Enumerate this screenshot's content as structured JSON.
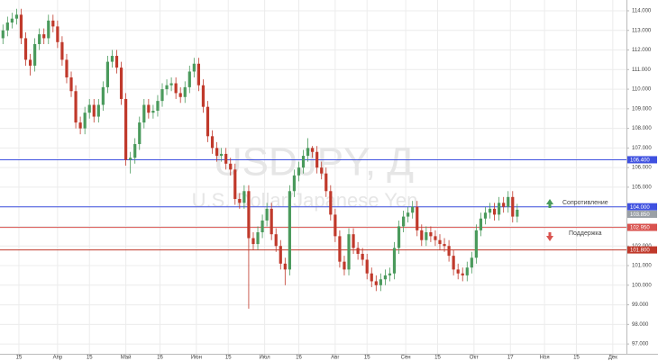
{
  "chart_data": {
    "type": "candlestick",
    "watermark_title": "USDJPY, Д",
    "watermark_subtitle": "U.S. Dollar/Japanese Yen",
    "annotations": {
      "resistance": "Сопротивление",
      "support": "Поддержка"
    },
    "up_color": "#4a9a5c",
    "down_color": "#c0392b",
    "grid": true,
    "xlim": [
      66.7,
      342
    ],
    "ylim": [
      96.5,
      114.55
    ],
    "xticks": [
      {
        "value": 75,
        "label": "15"
      },
      {
        "value": 92,
        "label": "Апр"
      },
      {
        "value": 106,
        "label": "15"
      },
      {
        "value": 122,
        "label": "Май"
      },
      {
        "value": 137,
        "label": "16"
      },
      {
        "value": 153,
        "label": "Июн"
      },
      {
        "value": 167,
        "label": "15"
      },
      {
        "value": 183,
        "label": "Июл"
      },
      {
        "value": 198,
        "label": "16"
      },
      {
        "value": 214,
        "label": "Авг"
      },
      {
        "value": 228,
        "label": "15"
      },
      {
        "value": 245,
        "label": "Сен"
      },
      {
        "value": 259,
        "label": "15"
      },
      {
        "value": 275,
        "label": "Окт"
      },
      {
        "value": 291,
        "label": "17"
      },
      {
        "value": 306,
        "label": "Ноя"
      },
      {
        "value": 320,
        "label": "15"
      },
      {
        "value": 336,
        "label": "Дек"
      }
    ],
    "yticks": [
      {
        "value": 97,
        "label": "97.000"
      },
      {
        "value": 98,
        "label": "98.000"
      },
      {
        "value": 99,
        "label": "99.000"
      },
      {
        "value": 100,
        "label": "100.000"
      },
      {
        "value": 101,
        "label": "101.000"
      },
      {
        "value": 102,
        "label": "102.000"
      },
      {
        "value": 103,
        "label": "103.000"
      },
      {
        "value": 104,
        "label": "104.000"
      },
      {
        "value": 105,
        "label": "105.000"
      },
      {
        "value": 106,
        "label": "106.000"
      },
      {
        "value": 107,
        "label": "107.000"
      },
      {
        "value": 108,
        "label": "108.000"
      },
      {
        "value": 109,
        "label": "109.000"
      },
      {
        "value": 110,
        "label": "110.000"
      },
      {
        "value": 111,
        "label": "111.000"
      },
      {
        "value": 112,
        "label": "112.000"
      },
      {
        "value": 113,
        "label": "113.000"
      },
      {
        "value": 114,
        "label": "114.000"
      }
    ],
    "levels": [
      {
        "value": 106.4,
        "label": "106.400",
        "color": "#3f51e0"
      },
      {
        "value": 104.0,
        "label": "104.000",
        "color": "#3f51e0"
      },
      {
        "value": 102.95,
        "label": "102.950",
        "color": "#d9534f"
      },
      {
        "value": 101.8,
        "label": "101.800",
        "color": "#c0392b"
      }
    ],
    "last_price": {
      "value": 103.85,
      "label": "103.850",
      "color": "#9aa0a6"
    },
    "x": [
      68,
      70,
      72,
      74,
      76,
      78,
      80,
      82,
      84,
      86,
      88,
      90,
      92,
      94,
      96,
      98,
      100,
      102,
      104,
      106,
      108,
      110,
      112,
      114,
      116,
      118,
      120,
      122,
      124,
      126,
      128,
      130,
      132,
      134,
      136,
      138,
      140,
      142,
      144,
      146,
      148,
      150,
      152,
      154,
      156,
      158,
      160,
      162,
      164,
      166,
      168,
      170,
      172,
      174,
      176,
      178,
      180,
      182,
      184,
      186,
      188,
      190,
      192,
      194,
      196,
      198,
      200,
      202,
      204,
      206,
      208,
      210,
      212,
      214,
      216,
      218,
      220,
      222,
      224,
      226,
      228,
      230,
      232,
      234,
      236,
      238,
      240,
      242,
      244,
      246,
      248,
      250,
      252,
      254,
      256,
      258,
      260,
      262,
      264,
      266,
      268,
      270,
      272,
      274,
      276,
      278,
      280,
      282,
      284,
      286,
      288,
      290,
      292,
      294
    ],
    "open": [
      112.6,
      113.0,
      113.4,
      113.6,
      113.8,
      112.6,
      111.5,
      111.2,
      112.3,
      112.8,
      112.6,
      113.5,
      113.2,
      112.4,
      111.5,
      110.6,
      109.9,
      108.3,
      108.0,
      108.8,
      109.2,
      108.6,
      109.2,
      110.1,
      111.4,
      111.7,
      111.1,
      109.5,
      106.4,
      106.5,
      107.2,
      108.3,
      109.2,
      108.8,
      108.9,
      109.4,
      110.0,
      110.2,
      110.3,
      109.8,
      109.6,
      110.1,
      110.9,
      111.3,
      110.2,
      109.1,
      107.6,
      107.0,
      106.6,
      106.7,
      106.2,
      105.9,
      104.4,
      104.2,
      104.8,
      102.4,
      102.1,
      102.7,
      103.3,
      103.9,
      102.6,
      102.0,
      101.1,
      100.8,
      104.8,
      105.6,
      106.0,
      106.6,
      107.0,
      106.8,
      106.0,
      105.7,
      104.8,
      103.6,
      102.5,
      101.2,
      100.8,
      102.6,
      101.9,
      101.6,
      101.3,
      100.6,
      100.2,
      100.0,
      100.3,
      100.5,
      100.6,
      101.9,
      103.0,
      103.5,
      103.7,
      104.0,
      102.8,
      102.3,
      102.7,
      102.5,
      102.3,
      102.1,
      102.0,
      101.5,
      100.8,
      100.6,
      100.5,
      100.9,
      101.4,
      102.8,
      103.4,
      103.7,
      103.9,
      103.6,
      104.2,
      104.0,
      104.5,
      103.5
    ],
    "high": [
      113.3,
      113.7,
      113.9,
      114.1,
      114.1,
      112.9,
      111.8,
      112.6,
      113.1,
      113.1,
      113.8,
      113.8,
      113.5,
      112.7,
      111.8,
      110.9,
      110.2,
      108.6,
      109.1,
      109.5,
      109.5,
      109.5,
      110.4,
      111.7,
      112.0,
      112.0,
      111.4,
      109.8,
      106.8,
      107.5,
      108.6,
      109.5,
      109.5,
      109.2,
      109.7,
      110.3,
      110.5,
      110.6,
      110.6,
      110.1,
      110.4,
      111.2,
      111.6,
      111.6,
      110.5,
      109.4,
      107.9,
      107.3,
      107.0,
      107.0,
      106.5,
      106.2,
      104.7,
      105.1,
      105.1,
      102.7,
      103.0,
      103.6,
      104.2,
      104.2,
      102.9,
      102.3,
      101.4,
      105.1,
      105.9,
      106.3,
      106.9,
      107.5,
      107.1,
      107.1,
      106.3,
      106.0,
      105.1,
      103.9,
      102.8,
      101.5,
      102.9,
      102.9,
      102.2,
      101.9,
      101.6,
      100.9,
      100.5,
      100.6,
      100.8,
      100.9,
      102.2,
      103.3,
      103.8,
      104.0,
      104.3,
      104.3,
      103.1,
      103.0,
      103.0,
      102.8,
      102.6,
      102.4,
      102.3,
      101.8,
      101.1,
      100.9,
      101.2,
      101.7,
      103.1,
      103.7,
      104.0,
      104.2,
      104.2,
      104.5,
      104.5,
      104.8,
      104.8,
      104.15
    ],
    "low": [
      112.3,
      112.7,
      113.1,
      113.3,
      112.3,
      111.2,
      110.7,
      110.9,
      112.0,
      112.3,
      112.3,
      112.9,
      112.1,
      111.2,
      110.3,
      109.6,
      108.0,
      107.7,
      107.7,
      108.5,
      108.3,
      108.3,
      108.9,
      109.8,
      111.1,
      110.8,
      109.2,
      106.1,
      105.7,
      106.2,
      106.9,
      108.0,
      108.5,
      108.5,
      108.6,
      109.1,
      109.7,
      109.9,
      109.5,
      109.3,
      109.3,
      109.8,
      110.6,
      109.9,
      108.8,
      107.3,
      106.7,
      106.3,
      106.3,
      105.9,
      105.6,
      104.1,
      103.9,
      103.9,
      98.8,
      101.8,
      101.8,
      102.4,
      103.0,
      102.3,
      101.7,
      100.8,
      100.0,
      100.5,
      104.5,
      105.3,
      105.7,
      106.3,
      106.5,
      105.7,
      105.4,
      104.5,
      103.3,
      102.2,
      100.9,
      100.5,
      100.5,
      101.6,
      101.3,
      101.0,
      100.3,
      99.9,
      99.7,
      99.7,
      100.0,
      100.2,
      100.3,
      101.6,
      102.7,
      103.2,
      103.4,
      102.5,
      102.0,
      102.0,
      102.2,
      102.0,
      101.8,
      101.7,
      101.2,
      100.5,
      100.3,
      100.2,
      100.2,
      100.6,
      101.1,
      102.5,
      103.1,
      103.4,
      103.3,
      103.3,
      103.7,
      103.7,
      103.2,
      103.2
    ],
    "close": [
      113.0,
      113.4,
      113.6,
      113.8,
      112.6,
      111.5,
      111.2,
      112.3,
      112.8,
      112.6,
      113.5,
      113.2,
      112.4,
      111.5,
      110.6,
      109.9,
      108.3,
      108.0,
      108.8,
      109.2,
      108.6,
      109.2,
      110.1,
      111.4,
      111.7,
      111.1,
      109.5,
      106.4,
      106.5,
      107.2,
      108.3,
      109.2,
      108.8,
      108.9,
      109.4,
      110.0,
      110.2,
      110.3,
      109.8,
      109.6,
      110.1,
      110.9,
      111.3,
      110.2,
      109.1,
      107.6,
      107.0,
      106.6,
      106.7,
      106.2,
      105.9,
      104.4,
      104.2,
      104.8,
      102.4,
      102.1,
      102.7,
      103.3,
      103.9,
      102.6,
      102.0,
      101.1,
      100.8,
      104.8,
      105.6,
      106.0,
      106.6,
      107.0,
      106.8,
      106.0,
      105.7,
      104.8,
      103.6,
      102.5,
      101.2,
      100.8,
      102.6,
      101.9,
      101.6,
      101.3,
      100.6,
      100.2,
      100.0,
      100.3,
      100.5,
      100.6,
      101.9,
      103.0,
      103.5,
      103.7,
      104.0,
      102.8,
      102.3,
      102.7,
      102.5,
      102.3,
      102.1,
      102.0,
      101.5,
      100.8,
      100.6,
      100.5,
      100.9,
      101.4,
      102.8,
      103.4,
      103.7,
      103.9,
      103.6,
      104.2,
      104.0,
      104.5,
      103.5,
      103.85
    ]
  }
}
